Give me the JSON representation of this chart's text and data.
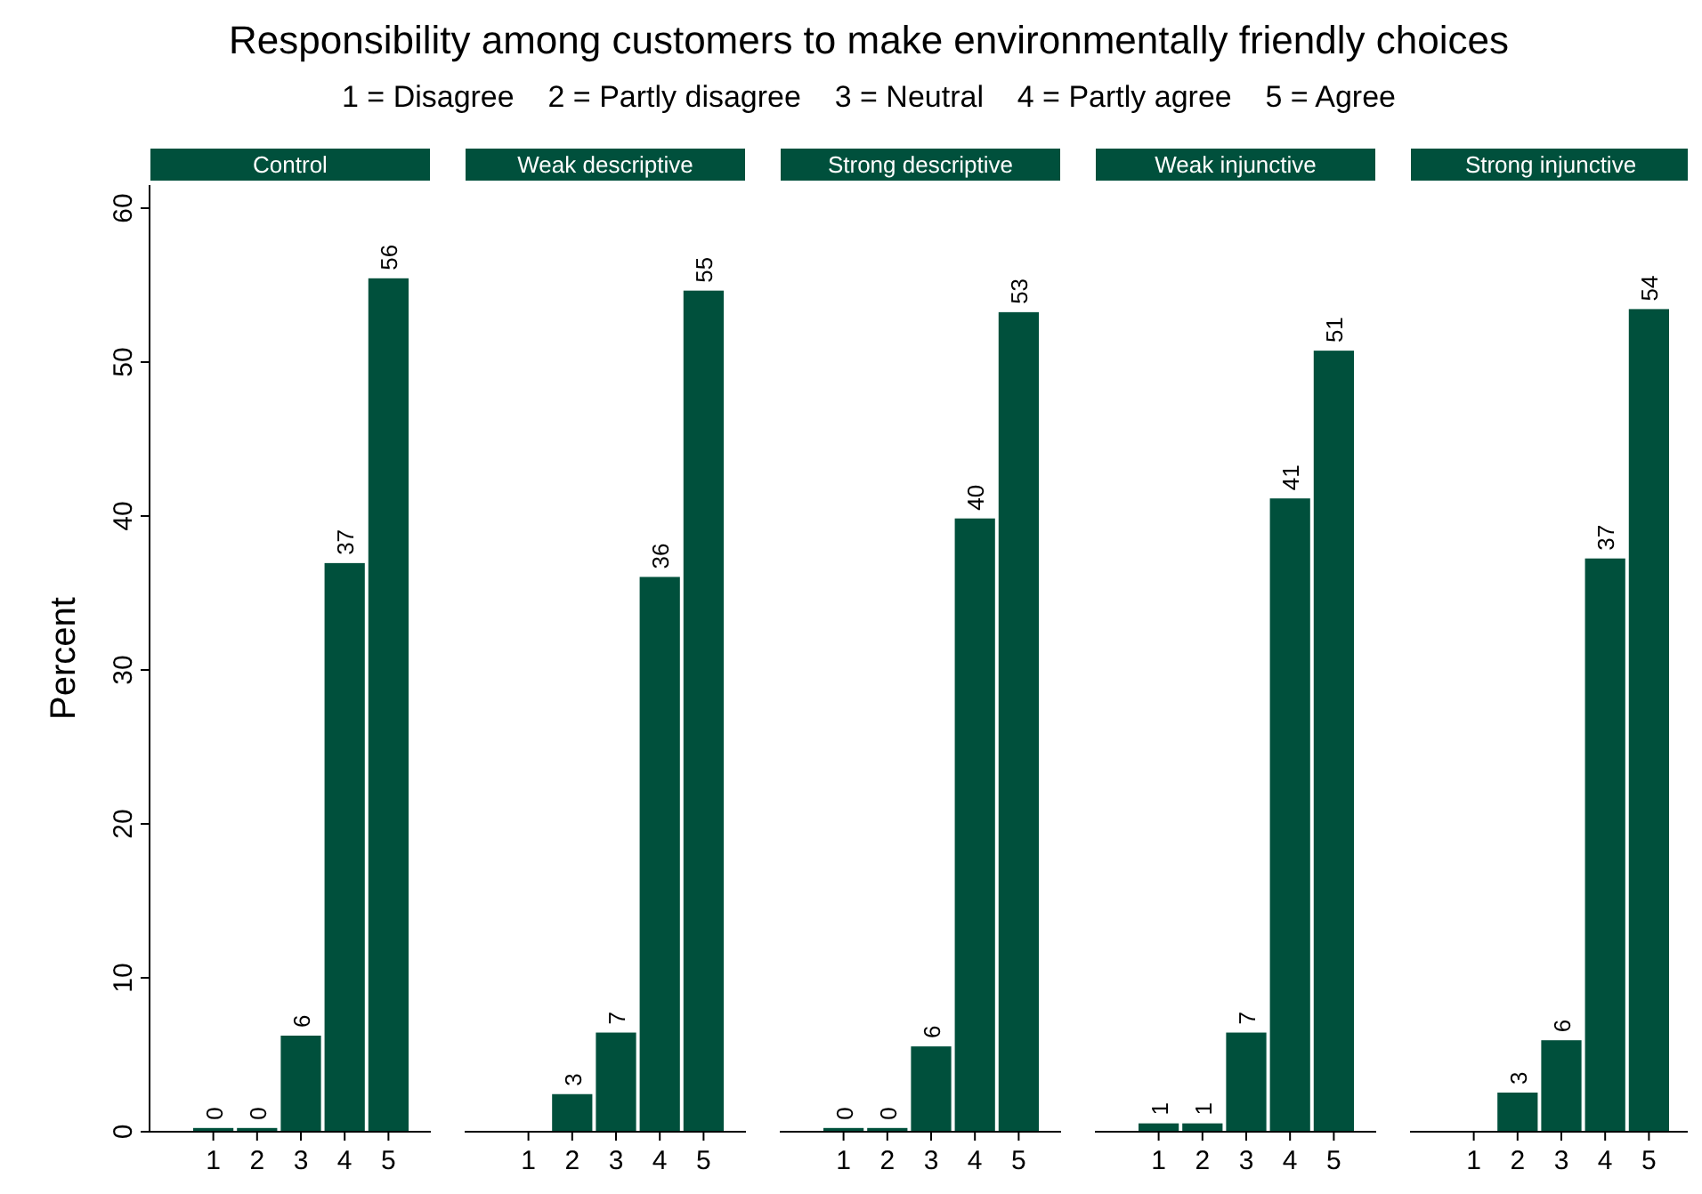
{
  "chart_data": [
    {
      "type": "bar",
      "title": "Control",
      "annotations": [
        "Responsibility among customers to make environmentally friendly choices",
        "1 = Disagree    2 = Partly disagree    3 = Neutral    4 = Partly agree    5 = Agree"
      ],
      "ylabel": "Percent",
      "categories": [
        "1",
        "2",
        "3",
        "4",
        "5"
      ],
      "values": [
        0.3,
        0.3,
        6.3,
        37,
        55.5
      ],
      "value_labels": [
        "0",
        "0",
        "6",
        "37",
        "56"
      ],
      "color": "#00503c",
      "ylim": [
        0,
        61.5
      ],
      "yticks": [
        0,
        10,
        20,
        30,
        40,
        50,
        60
      ],
      "grid": false
    },
    {
      "type": "bar",
      "title": "Weak descriptive",
      "categories": [
        "1",
        "2",
        "3",
        "4",
        "5"
      ],
      "values": [
        null,
        2.5,
        6.5,
        36.1,
        54.7
      ],
      "value_labels": [
        null,
        "3",
        "7",
        "36",
        "55"
      ],
      "color": "#00503c",
      "tick_labels": "x",
      "grid": false
    },
    {
      "type": "bar",
      "title": "Strong descriptive",
      "categories": [
        "1",
        "2",
        "3",
        "4",
        "5"
      ],
      "values": [
        0.3,
        0.3,
        5.6,
        39.9,
        53.3
      ],
      "value_labels": [
        "0",
        "0",
        "6",
        "40",
        "53"
      ],
      "color": "#00503c",
      "tick_labels": "x",
      "grid": false
    },
    {
      "type": "bar",
      "title": "Weak injunctive",
      "categories": [
        "1",
        "2",
        "3",
        "4",
        "5"
      ],
      "values": [
        0.6,
        0.6,
        6.5,
        41.2,
        50.8
      ],
      "value_labels": [
        "1",
        "1",
        "7",
        "41",
        "51"
      ],
      "color": "#00503c",
      "tick_labels": "x",
      "grid": false
    },
    {
      "type": "bar",
      "title": "Strong injunctive",
      "categories": [
        "1",
        "2",
        "3",
        "4",
        "5"
      ],
      "values": [
        null,
        2.6,
        6.0,
        37.3,
        53.5
      ],
      "value_labels": [
        null,
        "3",
        "6",
        "37",
        "54"
      ],
      "color": "#00503c",
      "tick_labels": "x",
      "grid": false
    }
  ]
}
